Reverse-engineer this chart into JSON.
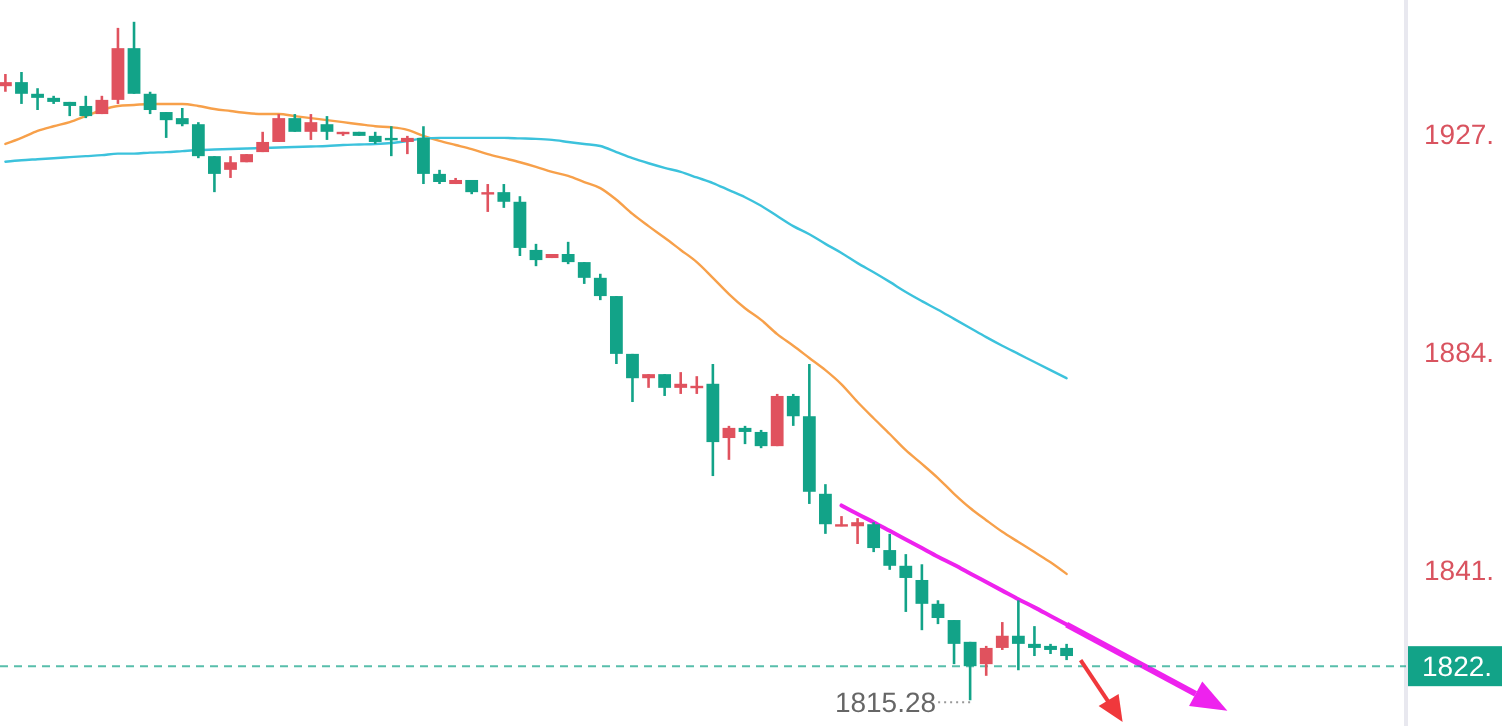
{
  "chart_data": {
    "type": "candlestick",
    "categories": [
      null,
      null,
      null,
      null,
      null,
      null,
      null,
      null,
      null,
      null,
      null,
      null,
      null,
      null,
      null,
      null,
      null,
      null,
      null,
      null,
      null,
      null,
      null,
      null,
      null,
      null,
      null,
      null,
      null,
      null,
      null,
      null,
      null,
      null,
      null,
      null,
      null,
      null,
      null,
      null,
      null,
      null,
      null,
      null,
      null,
      null,
      null,
      null,
      null,
      null,
      null,
      null,
      null,
      null,
      null,
      null,
      null,
      null,
      null,
      null,
      null,
      null,
      null,
      null,
      null,
      null,
      null
    ],
    "ohlc": [
      [
        1936.4,
        1938.8,
        1935.3,
        1937.2
      ],
      [
        1937.2,
        1939.2,
        1932.9,
        1934.9
      ],
      [
        1934.9,
        1936.0,
        1931.7,
        1934.1
      ],
      [
        1934.1,
        1934.5,
        1932.9,
        1933.3
      ],
      [
        1933.3,
        1933.3,
        1930.5,
        1932.5
      ],
      [
        1932.5,
        1934.5,
        1930.1,
        1930.5
      ],
      [
        1930.9,
        1934.5,
        1930.9,
        1933.7
      ],
      [
        1933.7,
        1947.9,
        1932.9,
        1943.9
      ],
      [
        1943.9,
        1949.1,
        1934.9,
        1934.9
      ],
      [
        1934.9,
        1935.3,
        1930.9,
        1931.7
      ],
      [
        1931.3,
        1931.3,
        1926.2,
        1929.7
      ],
      [
        1930.1,
        1932.1,
        1928.5,
        1928.9
      ],
      [
        1928.9,
        1929.3,
        1922.2,
        1922.6
      ],
      [
        1922.6,
        1922.6,
        1915.5,
        1919.1
      ],
      [
        1919.9,
        1922.6,
        1918.3,
        1921.4
      ],
      [
        1921.4,
        1923.0,
        1921.4,
        1923.0
      ],
      [
        1923.4,
        1927.4,
        1923.4,
        1925.4
      ],
      [
        1925.4,
        1930.9,
        1925.4,
        1930.1
      ],
      [
        1930.1,
        1930.9,
        1927.4,
        1927.4
      ],
      [
        1927.4,
        1930.9,
        1925.8,
        1929.3
      ],
      [
        1928.9,
        1930.5,
        1925.8,
        1927.4
      ],
      [
        1927.0,
        1927.4,
        1926.6,
        1927.4
      ],
      [
        1927.4,
        1927.4,
        1926.6,
        1926.6
      ],
      [
        1926.6,
        1927.4,
        1925.0,
        1925.4
      ],
      [
        1926.2,
        1928.5,
        1922.6,
        1925.8
      ],
      [
        1925.4,
        1926.6,
        1923.0,
        1926.2
      ],
      [
        1926.2,
        1928.5,
        1917.1,
        1919.1
      ],
      [
        1919.1,
        1919.9,
        1917.1,
        1917.5
      ],
      [
        1917.1,
        1918.3,
        1917.1,
        1917.9
      ],
      [
        1917.9,
        1917.9,
        1915.1,
        1915.5
      ],
      [
        1915.1,
        1917.1,
        1911.6,
        1915.5
      ],
      [
        1915.5,
        1917.1,
        1912.4,
        1913.6
      ],
      [
        1913.6,
        1914.7,
        1902.9,
        1904.5
      ],
      [
        1904.1,
        1905.3,
        1900.9,
        1902.1
      ],
      [
        1902.5,
        1903.3,
        1902.5,
        1903.3
      ],
      [
        1903.3,
        1905.7,
        1901.3,
        1901.7
      ],
      [
        1901.7,
        1901.7,
        1897.4,
        1898.6
      ],
      [
        1898.6,
        1899.4,
        1894.2,
        1895.0
      ],
      [
        1895.0,
        1895.0,
        1881.6,
        1883.6
      ],
      [
        1883.6,
        1883.6,
        1874.1,
        1878.8
      ],
      [
        1878.8,
        1879.6,
        1876.9,
        1879.6
      ],
      [
        1879.6,
        1879.6,
        1875.3,
        1876.9
      ],
      [
        1876.9,
        1880.0,
        1875.7,
        1877.7
      ],
      [
        1876.9,
        1879.2,
        1875.7,
        1877.3
      ],
      [
        1877.7,
        1881.6,
        1859.5,
        1866.2
      ],
      [
        1867.0,
        1869.4,
        1862.7,
        1869.0
      ],
      [
        1869.0,
        1869.4,
        1865.8,
        1868.2
      ],
      [
        1868.2,
        1868.6,
        1865.0,
        1865.4
      ],
      [
        1865.4,
        1875.7,
        1865.4,
        1875.3
      ],
      [
        1875.3,
        1875.7,
        1869.4,
        1871.3
      ],
      [
        1871.3,
        1881.6,
        1854.0,
        1856.4
      ],
      [
        1856.0,
        1857.9,
        1848.1,
        1850.0
      ],
      [
        1849.6,
        1851.6,
        1849.6,
        1850.0
      ],
      [
        1849.6,
        1851.2,
        1846.1,
        1850.4
      ],
      [
        1850.0,
        1850.4,
        1844.5,
        1845.3
      ],
      [
        1844.9,
        1848.1,
        1841.0,
        1841.8
      ],
      [
        1841.8,
        1844.1,
        1832.7,
        1839.4
      ],
      [
        1839.0,
        1842.1,
        1829.1,
        1834.3
      ],
      [
        1834.3,
        1835.0,
        1830.3,
        1831.5
      ],
      [
        1831.1,
        1831.1,
        1822.4,
        1826.4
      ],
      [
        1826.8,
        1826.8,
        1815.28,
        1822.0
      ],
      [
        1822.4,
        1826.0,
        1820.1,
        1825.6
      ],
      [
        1825.6,
        1830.7,
        1825.2,
        1828.0
      ],
      [
        1828.0,
        1835.0,
        1821.2,
        1826.4
      ],
      [
        1826.4,
        1829.9,
        1824.0,
        1825.6
      ],
      [
        1826.0,
        1826.4,
        1824.4,
        1825.2
      ],
      [
        1825.6,
        1826.4,
        1823.2,
        1824.0
      ]
    ],
    "colors": [
      "#e0525e",
      "#12a388",
      "#12a388",
      "#12a388",
      "#12a388",
      "#12a388",
      "#e0525e",
      "#e0525e",
      "#12a388",
      "#12a388",
      "#12a388",
      "#12a388",
      "#12a388",
      "#12a388",
      "#e0525e",
      "#e0525e",
      "#e0525e",
      "#e0525e",
      "#12a388",
      "#e0525e",
      "#12a388",
      "#e0525e",
      "#12a388",
      "#12a388",
      "#12a388",
      "#e0525e",
      "#12a388",
      "#12a388",
      "#e0525e",
      "#12a388",
      "#e0525e",
      "#12a388",
      "#12a388",
      "#12a388",
      "#e0525e",
      "#12a388",
      "#12a388",
      "#12a388",
      "#12a388",
      "#12a388",
      "#e0525e",
      "#12a388",
      "#e0525e",
      "#e0525e",
      "#12a388",
      "#e0525e",
      "#12a388",
      "#12a388",
      "#e0525e",
      "#12a388",
      "#12a388",
      "#12a388",
      "#e0525e",
      "#e0525e",
      "#12a388",
      "#12a388",
      "#12a388",
      "#12a388",
      "#12a388",
      "#12a388",
      "#12a388",
      "#e0525e",
      "#e0525e",
      "#12a388",
      "#12a388",
      "#12a388",
      "#12a388"
    ],
    "series": [
      {
        "type": "line",
        "color": "#f7a04a",
        "values": [
          1925.0,
          1926.2,
          1927.6,
          1928.5,
          1929.3,
          1930.5,
          1931.7,
          1932.5,
          1932.7,
          1932.9,
          1932.9,
          1932.9,
          1932.5,
          1931.9,
          1931.5,
          1931.1,
          1930.9,
          1930.9,
          1930.5,
          1930.1,
          1929.7,
          1929.3,
          1928.9,
          1928.5,
          1928.3,
          1927.8,
          1926.6,
          1925.6,
          1924.8,
          1924.0,
          1923.0,
          1922.2,
          1921.4,
          1920.5,
          1919.5,
          1918.7,
          1917.5,
          1916.3,
          1914.0,
          1911.2,
          1908.8,
          1906.5,
          1904.1,
          1901.7,
          1898.6,
          1895.4,
          1892.6,
          1890.3,
          1887.5,
          1885.2,
          1882.8,
          1880.4,
          1877.6,
          1874.1,
          1870.9,
          1867.8,
          1864.6,
          1861.9,
          1859.1,
          1856.0,
          1853.2,
          1850.8,
          1848.5,
          1846.5,
          1844.5,
          1842.5,
          1840.2
        ]
      },
      {
        "type": "line",
        "color": "#3cc2dc",
        "values": [
          1921.5,
          1921.8,
          1922.0,
          1922.2,
          1922.4,
          1922.6,
          1922.8,
          1923.1,
          1923.1,
          1923.3,
          1923.4,
          1923.6,
          1923.8,
          1923.9,
          1924.0,
          1924.1,
          1924.2,
          1924.3,
          1924.4,
          1924.5,
          1924.6,
          1924.8,
          1924.9,
          1925.0,
          1925.2,
          1925.6,
          1926.1,
          1926.2,
          1926.2,
          1926.2,
          1926.2,
          1926.2,
          1926.1,
          1926.0,
          1925.8,
          1925.4,
          1925.0,
          1924.6,
          1923.4,
          1922.2,
          1921.2,
          1920.3,
          1919.5,
          1918.4,
          1917.3,
          1915.9,
          1914.5,
          1912.8,
          1910.8,
          1908.8,
          1907.2,
          1905.3,
          1903.5,
          1901.5,
          1899.7,
          1897.8,
          1895.8,
          1894.0,
          1892.3,
          1890.5,
          1888.7,
          1886.9,
          1885.2,
          1883.6,
          1882.0,
          1880.4,
          1878.8
        ]
      },
      {
        "type": "line",
        "color": "#ee22ee",
        "values": [
          null,
          null,
          null,
          null,
          null,
          null,
          null,
          null,
          null,
          null,
          null,
          null,
          null,
          null,
          null,
          null,
          null,
          null,
          null,
          null,
          null,
          null,
          null,
          null,
          null,
          null,
          null,
          null,
          null,
          null,
          null,
          null,
          null,
          null,
          null,
          null,
          null,
          null,
          null,
          null,
          null,
          null,
          null,
          null,
          null,
          null,
          null,
          null,
          null,
          null,
          null,
          null,
          1853.7,
          1852.0,
          1850.4,
          1848.7,
          1847.0,
          1845.3,
          1843.6,
          1842.0,
          1840.3,
          1838.6,
          1836.9,
          1835.2,
          1833.6,
          1831.9,
          1830.2
        ]
      }
    ],
    "ylim": [
      1810.2,
      1953.4
    ],
    "yticks": [
      {
        "value": 1927,
        "label": "1927."
      },
      {
        "value": 1884,
        "label": "1884."
      },
      {
        "value": 1841,
        "label": "1841."
      }
    ],
    "tick_labels": "y",
    "ref_lines": [
      {
        "axis": "y",
        "value": 1822,
        "label": "1822.",
        "color": "#12a388",
        "line_style": "dashed"
      }
    ],
    "annotations": [
      "1815.28"
    ]
  }
}
